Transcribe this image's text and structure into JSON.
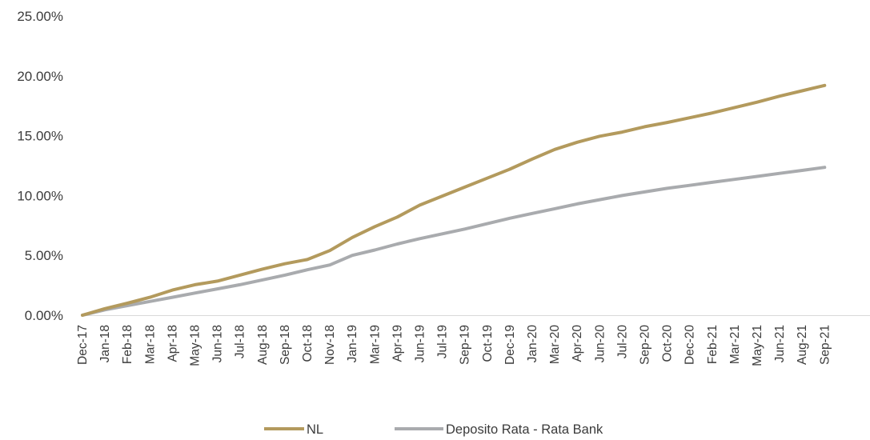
{
  "chart_data": {
    "type": "line",
    "title": "",
    "xlabel": "",
    "ylabel": "",
    "ylim": [
      0,
      25
    ],
    "y_ticks": [
      "0.00%",
      "5.00%",
      "10.00%",
      "15.00%",
      "20.00%",
      "25.00%"
    ],
    "y_tick_values": [
      0,
      5,
      10,
      15,
      20,
      25
    ],
    "grid": false,
    "legend": "bottom",
    "categories": [
      "Dec-17",
      "Jan-18",
      "Feb-18",
      "Mar-18",
      "Apr-18",
      "May-18",
      "Jun-18",
      "Jul-18",
      "Aug-18",
      "Sep-18",
      "Oct-18",
      "Nov-18",
      "Jan-19",
      "Mar-19",
      "Apr-19",
      "Jun-19",
      "Jul-19",
      "Sep-19",
      "Oct-19",
      "Dec-19",
      "Jan-20",
      "Mar-20",
      "Apr-20",
      "Jun-20",
      "Jul-20",
      "Sep-20",
      "Oct-20",
      "Dec-20",
      "Feb-21",
      "Mar-21",
      "May-21",
      "Jun-21",
      "Aug-21",
      "Sep-21"
    ],
    "series": [
      {
        "name": "NL",
        "color": "#b39a5d",
        "values": [
          0.0,
          0.55,
          1.0,
          1.5,
          2.1,
          2.55,
          2.85,
          3.35,
          3.85,
          4.3,
          4.65,
          5.4,
          6.5,
          7.4,
          8.2,
          9.2,
          9.95,
          10.7,
          11.45,
          12.2,
          13.05,
          13.85,
          14.45,
          14.95,
          15.3,
          15.75,
          16.1,
          16.5,
          16.9,
          17.35,
          17.8,
          18.3,
          18.75,
          19.2
        ]
      },
      {
        "name": "Deposito Rata - Rata Bank",
        "color": "#a9abae",
        "values": [
          0.0,
          0.45,
          0.8,
          1.15,
          1.5,
          1.85,
          2.2,
          2.55,
          2.95,
          3.35,
          3.8,
          4.2,
          5.0,
          5.45,
          5.95,
          6.4,
          6.8,
          7.2,
          7.65,
          8.1,
          8.5,
          8.9,
          9.3,
          9.65,
          10.0,
          10.3,
          10.6,
          10.85,
          11.1,
          11.35,
          11.6,
          11.85,
          12.1,
          12.35
        ]
      }
    ]
  }
}
